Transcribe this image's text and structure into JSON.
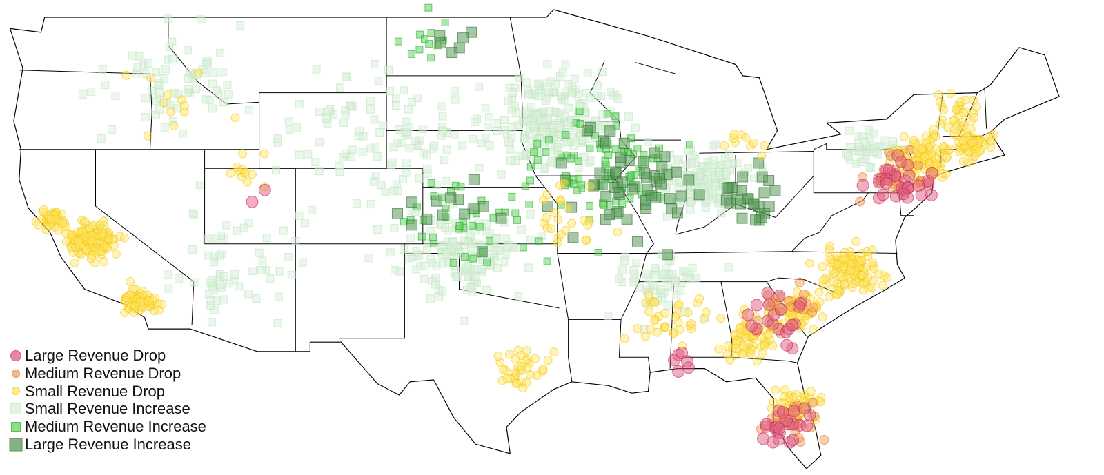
{
  "legend": {
    "items": [
      {
        "key": "large_drop",
        "label": "Large Revenue Drop",
        "shape": "circle",
        "color": "#e0607e",
        "stroke": "#c2185b"
      },
      {
        "key": "medium_drop",
        "label": "Medium Revenue Drop",
        "shape": "circle",
        "color": "#f4a260",
        "stroke": "#e07020"
      },
      {
        "key": "small_drop",
        "label": "Small Revenue Drop",
        "shape": "circle",
        "color": "#ffe566",
        "stroke": "#f2c600"
      },
      {
        "key": "small_inc",
        "label": "Small Revenue Increase",
        "shape": "square",
        "color": "#d8f0d8",
        "stroke": "#bfe3bf"
      },
      {
        "key": "medium_inc",
        "label": "Medium Revenue Increase",
        "shape": "square",
        "color": "#66d466",
        "stroke": "#22aa22"
      },
      {
        "key": "large_inc",
        "label": "Large Revenue Increase",
        "shape": "square",
        "color": "#5a9a5a",
        "stroke": "#2e6b2e"
      }
    ]
  },
  "map": {
    "region": "Contiguous United States",
    "base_fill": "#ffffff",
    "border_color": "#000000"
  },
  "clusters": [
    {
      "cat": "small_drop",
      "lon": -120.2,
      "lat": 37.2,
      "spread": 1.4,
      "n": 120
    },
    {
      "cat": "small_drop",
      "lon": -117.6,
      "lat": 34.0,
      "spread": 1.0,
      "n": 60
    },
    {
      "cat": "small_drop",
      "lon": -122.3,
      "lat": 38.3,
      "spread": 0.8,
      "n": 40
    },
    {
      "cat": "small_drop",
      "lon": -74.5,
      "lat": 41.5,
      "spread": 1.6,
      "n": 110
    },
    {
      "cat": "small_drop",
      "lon": -71.8,
      "lat": 42.2,
      "spread": 1.2,
      "n": 50
    },
    {
      "cat": "small_drop",
      "lon": -78.5,
      "lat": 35.6,
      "spread": 1.6,
      "n": 110
    },
    {
      "cat": "small_drop",
      "lon": -81.5,
      "lat": 33.4,
      "spread": 1.4,
      "n": 70
    },
    {
      "cat": "small_drop",
      "lon": -84.0,
      "lat": 32.0,
      "spread": 1.6,
      "n": 60
    },
    {
      "cat": "small_drop",
      "lon": -81.5,
      "lat": 28.5,
      "spread": 1.3,
      "n": 50
    },
    {
      "cat": "small_drop",
      "lon": -96.5,
      "lat": 30.5,
      "spread": 1.6,
      "n": 35
    },
    {
      "cat": "small_drop",
      "lon": -88.5,
      "lat": 33.0,
      "spread": 2.0,
      "n": 35
    },
    {
      "cat": "small_drop",
      "lon": -112.0,
      "lat": 41.0,
      "spread": 1.5,
      "n": 12
    },
    {
      "cat": "small_drop",
      "lon": -115.0,
      "lat": 44.5,
      "spread": 3.0,
      "n": 12
    },
    {
      "cat": "small_drop",
      "lon": -94.0,
      "lat": 38.5,
      "spread": 2.5,
      "n": 25
    },
    {
      "cat": "small_drop",
      "lon": -72.5,
      "lat": 44.0,
      "spread": 1.5,
      "n": 30
    },
    {
      "cat": "small_drop",
      "lon": -84.5,
      "lat": 42.5,
      "spread": 1.5,
      "n": 10
    },
    {
      "cat": "small_inc",
      "lon": -95.0,
      "lat": 43.5,
      "spread": 3.5,
      "n": 220
    },
    {
      "cat": "small_inc",
      "lon": -86.5,
      "lat": 40.5,
      "spread": 2.5,
      "n": 140
    },
    {
      "cat": "small_inc",
      "lon": -100.0,
      "lat": 36.5,
      "spread": 3.5,
      "n": 150
    },
    {
      "cat": "small_inc",
      "lon": -104.0,
      "lat": 42.5,
      "spread": 5.0,
      "n": 110
    },
    {
      "cat": "small_inc",
      "lon": -116.0,
      "lat": 46.0,
      "spread": 4.0,
      "n": 70
    },
    {
      "cat": "small_inc",
      "lon": -112.0,
      "lat": 36.0,
      "spread": 4.0,
      "n": 60
    },
    {
      "cat": "small_inc",
      "lon": -89.0,
      "lat": 35.0,
      "spread": 2.5,
      "n": 60
    },
    {
      "cat": "small_inc",
      "lon": -77.5,
      "lat": 42.0,
      "spread": 1.5,
      "n": 40
    },
    {
      "cat": "medium_inc",
      "lon": -92.0,
      "lat": 41.0,
      "spread": 4.0,
      "n": 80
    },
    {
      "cat": "medium_inc",
      "lon": -99.0,
      "lat": 38.0,
      "spread": 4.0,
      "n": 40
    },
    {
      "cat": "medium_inc",
      "lon": -101.5,
      "lat": 47.5,
      "spread": 2.0,
      "n": 12
    },
    {
      "cat": "large_inc",
      "lon": -90.5,
      "lat": 40.0,
      "spread": 4.0,
      "n": 60
    },
    {
      "cat": "large_inc",
      "lon": -100.0,
      "lat": 47.8,
      "spread": 1.0,
      "n": 6
    },
    {
      "cat": "large_inc",
      "lon": -84.0,
      "lat": 39.5,
      "spread": 2.2,
      "n": 25
    },
    {
      "cat": "large_inc",
      "lon": -100.5,
      "lat": 38.5,
      "spread": 3.0,
      "n": 14
    },
    {
      "cat": "medium_drop",
      "lon": -76.0,
      "lat": 40.5,
      "spread": 1.5,
      "n": 30
    },
    {
      "cat": "medium_drop",
      "lon": -81.5,
      "lat": 27.5,
      "spread": 1.5,
      "n": 25
    },
    {
      "cat": "medium_drop",
      "lon": -82.0,
      "lat": 33.5,
      "spread": 2.0,
      "n": 20
    },
    {
      "cat": "large_drop",
      "lon": -75.5,
      "lat": 40.5,
      "spread": 1.5,
      "n": 30
    },
    {
      "cat": "large_drop",
      "lon": -82.0,
      "lat": 27.5,
      "spread": 1.6,
      "n": 22
    },
    {
      "cat": "large_drop",
      "lon": -82.5,
      "lat": 33.0,
      "spread": 2.2,
      "n": 20
    },
    {
      "cat": "large_drop",
      "lon": -111.0,
      "lat": 39.5,
      "spread": 0.5,
      "n": 2
    },
    {
      "cat": "large_drop",
      "lon": -87.5,
      "lat": 31.0,
      "spread": 1.2,
      "n": 6
    }
  ]
}
